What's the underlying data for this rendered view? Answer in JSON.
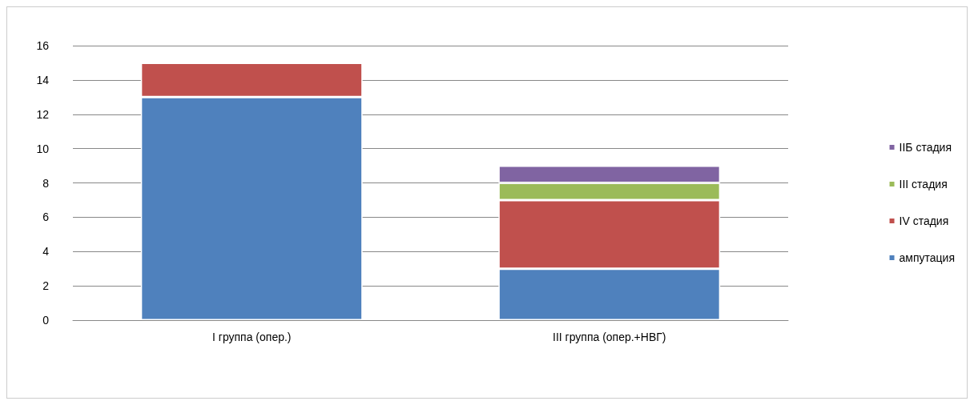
{
  "chart_data": {
    "type": "bar",
    "stacked": true,
    "categories": [
      "I группа (опер.)",
      "III группа (опер.+НВГ)"
    ],
    "series": [
      {
        "name": "ампутация",
        "color": "#4f81bd",
        "values": [
          13,
          3
        ]
      },
      {
        "name": "IV стадия",
        "color": "#c0504d",
        "values": [
          2,
          4
        ]
      },
      {
        "name": "III стадия",
        "color": "#9bbb59",
        "values": [
          null,
          1
        ]
      },
      {
        "name": "IIБ стадия",
        "color": "#8064a2",
        "values": [
          null,
          1
        ]
      }
    ],
    "ylim": [
      0,
      16
    ],
    "yticks": [
      0,
      2,
      4,
      6,
      8,
      10,
      12,
      14,
      16
    ],
    "grid": "y",
    "legend": "right"
  }
}
